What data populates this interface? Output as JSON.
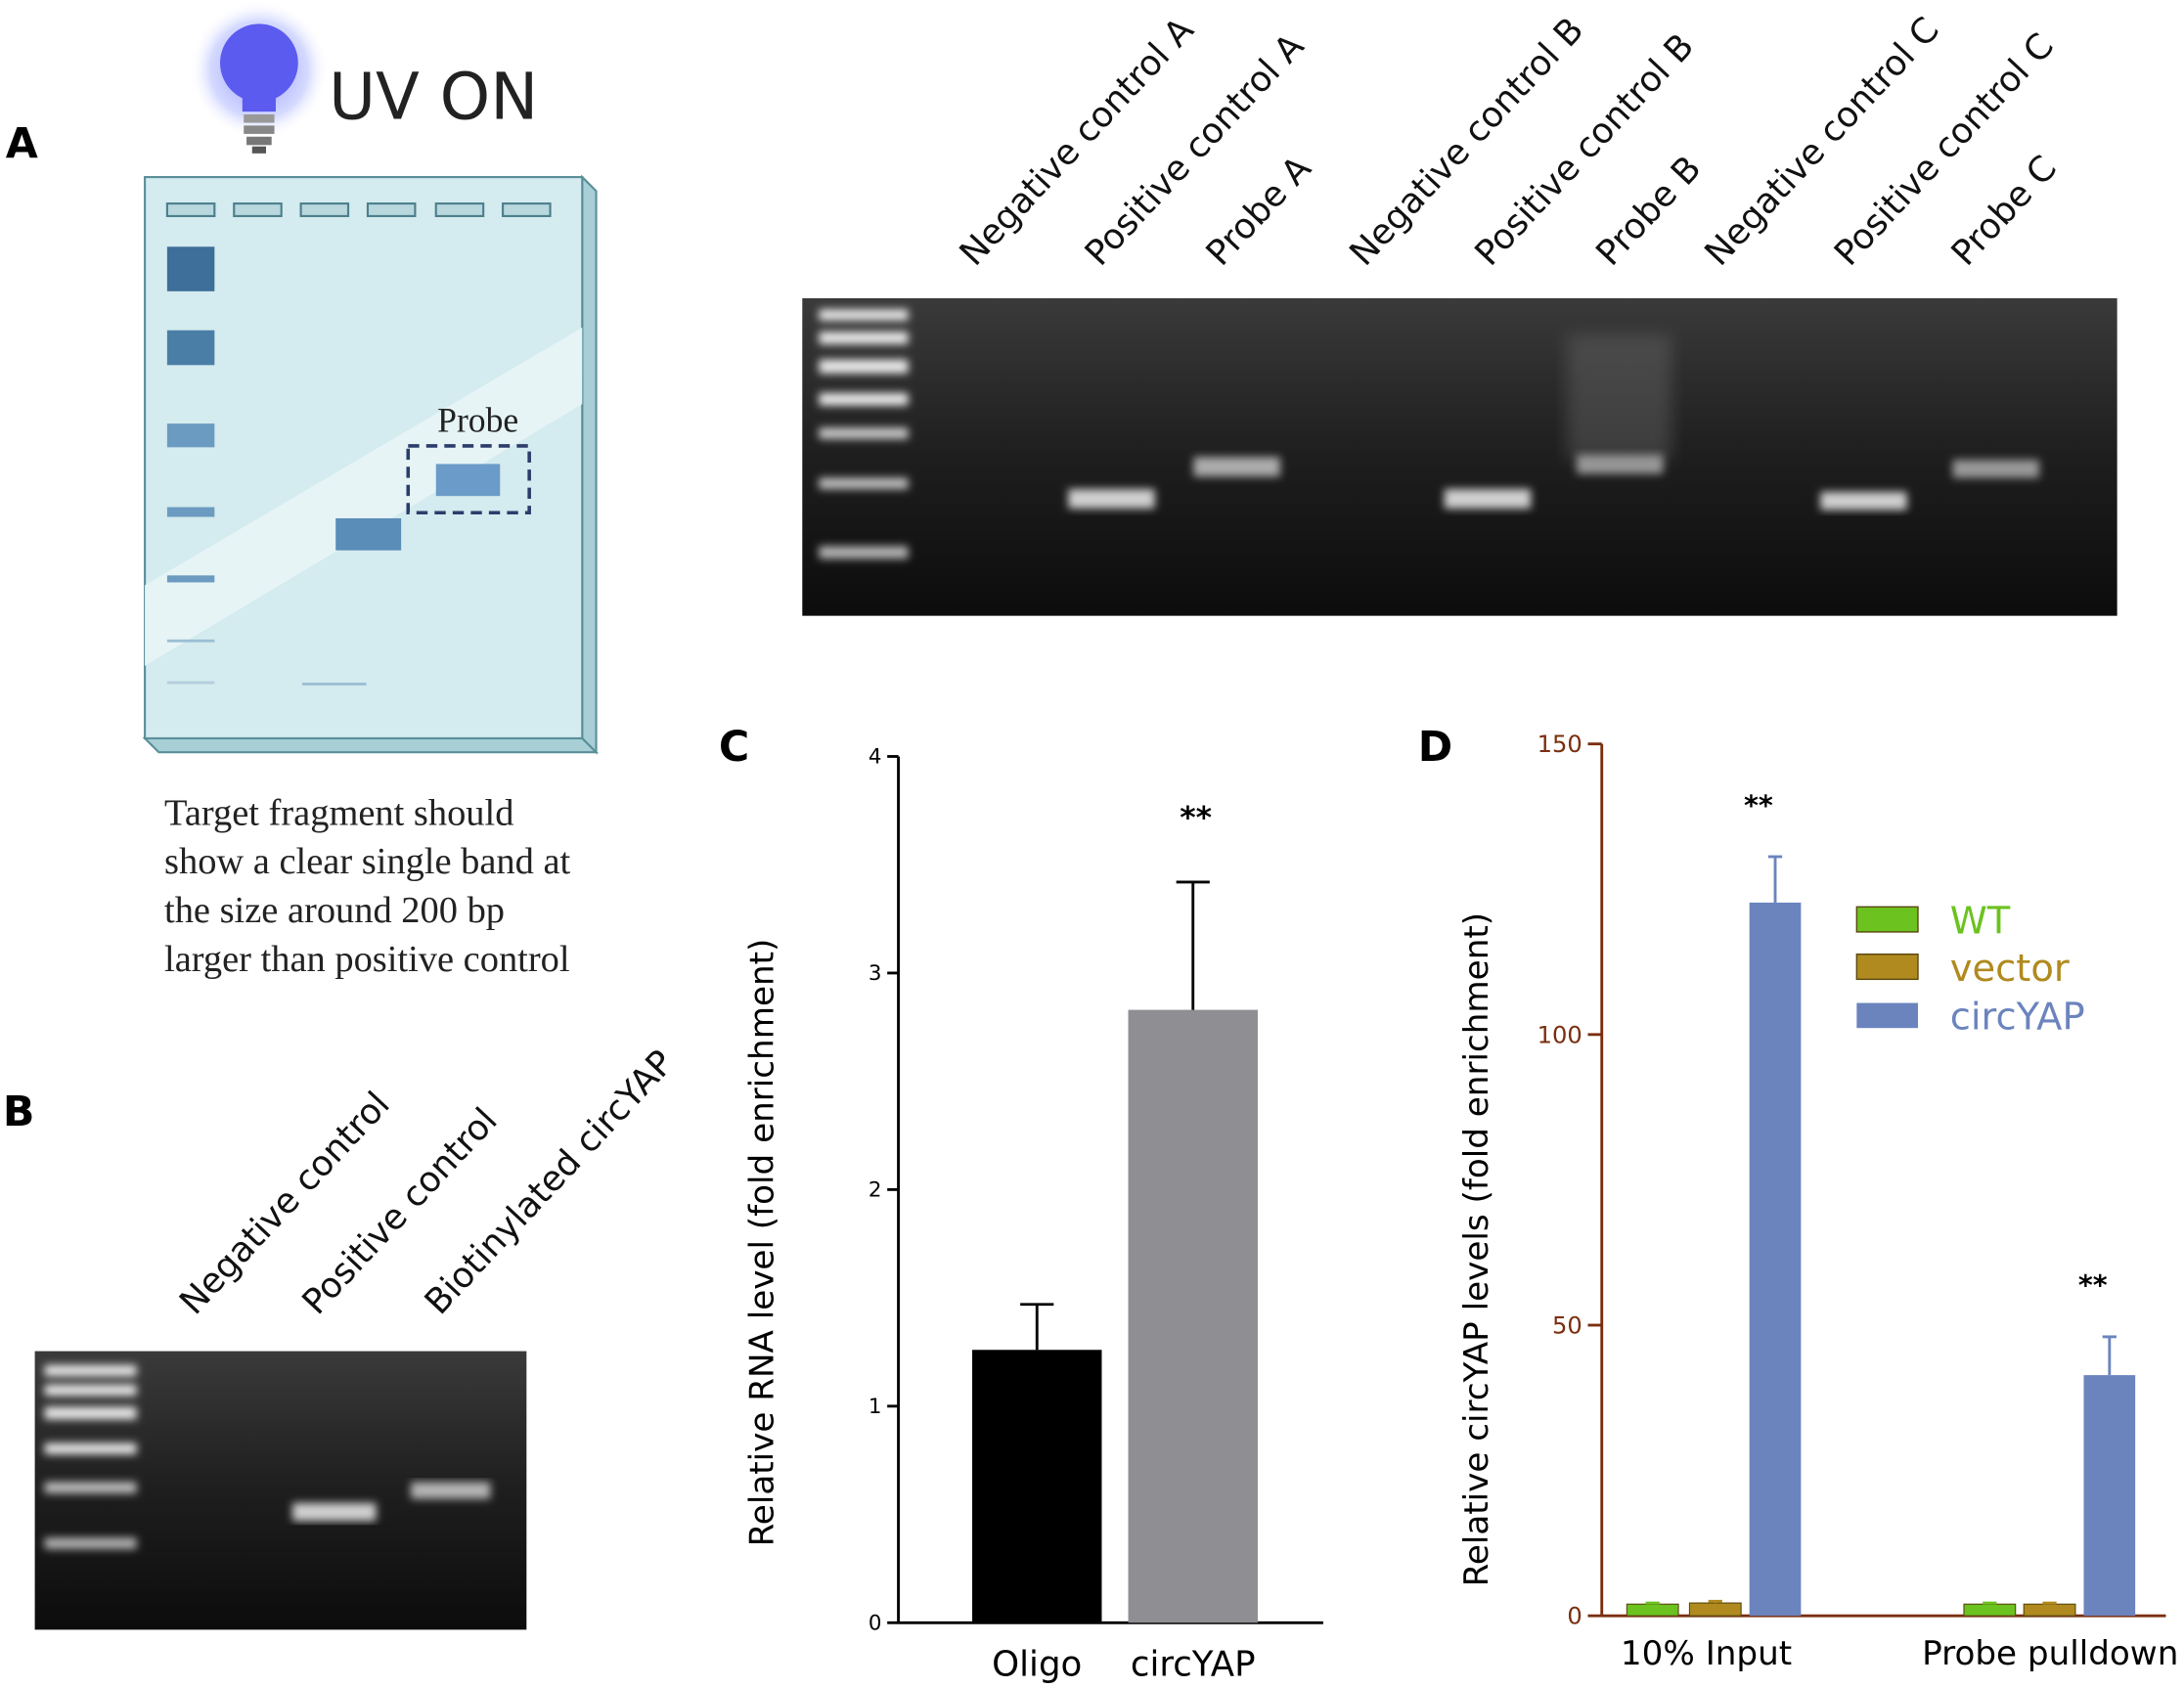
{
  "panel_letters": {
    "a": "A",
    "b": "B",
    "c": "C",
    "d": "D"
  },
  "panel_a": {
    "uv_label": "UV ON",
    "probe_label": "Probe",
    "description_lines": [
      "Target fragment should",
      "show a clear single band at",
      "the size around 200 bp",
      "larger than positive control"
    ],
    "gel_lanes": [
      "Negative control A",
      "Positive control A",
      "Probe A",
      "Negative control B",
      "Positive control B",
      "Probe B",
      "Negative control C",
      "Positive control C",
      "Probe C"
    ]
  },
  "panel_b": {
    "gel_lanes": [
      "Negative control",
      "Positive control",
      "Biotinylated circYAP"
    ]
  },
  "chart_data": [
    {
      "type": "bar",
      "panel": "C",
      "categories": [
        "Oligo",
        "circYAP"
      ],
      "values": [
        1.26,
        2.83
      ],
      "error": [
        0.21,
        0.59
      ],
      "colors": [
        "#000000",
        "#8e8e93"
      ],
      "significance": [
        "",
        "**"
      ],
      "ylabel": "Relative RNA level (fold enrichment)",
      "ylim": [
        0,
        4
      ],
      "yticks": [
        "0",
        "1",
        "2",
        "3",
        "4"
      ],
      "grid": false
    },
    {
      "type": "bar",
      "panel": "D",
      "categories": [
        "10% Input",
        "Probe pulldown"
      ],
      "series": [
        {
          "name": "WT",
          "color": "#6cc21e",
          "values": [
            2,
            2
          ],
          "error": [
            0.2,
            0.2
          ]
        },
        {
          "name": "vector",
          "color": "#b08a1e",
          "values": [
            2.2,
            2
          ],
          "error": [
            0.3,
            0.2
          ]
        },
        {
          "name": "circYAP",
          "color": "#6b84be",
          "values": [
            122.7,
            41.4
          ],
          "error": [
            7.9,
            6.6
          ]
        }
      ],
      "significance": [
        "**",
        "**"
      ],
      "ylabel": "Relative circYAP levels (fold enrichment)",
      "ylim": [
        0,
        150
      ],
      "yticks": [
        "0",
        "50",
        "100",
        "150"
      ],
      "axis_color": "#7a2e0e",
      "legend": "top-right",
      "grid": false
    }
  ]
}
